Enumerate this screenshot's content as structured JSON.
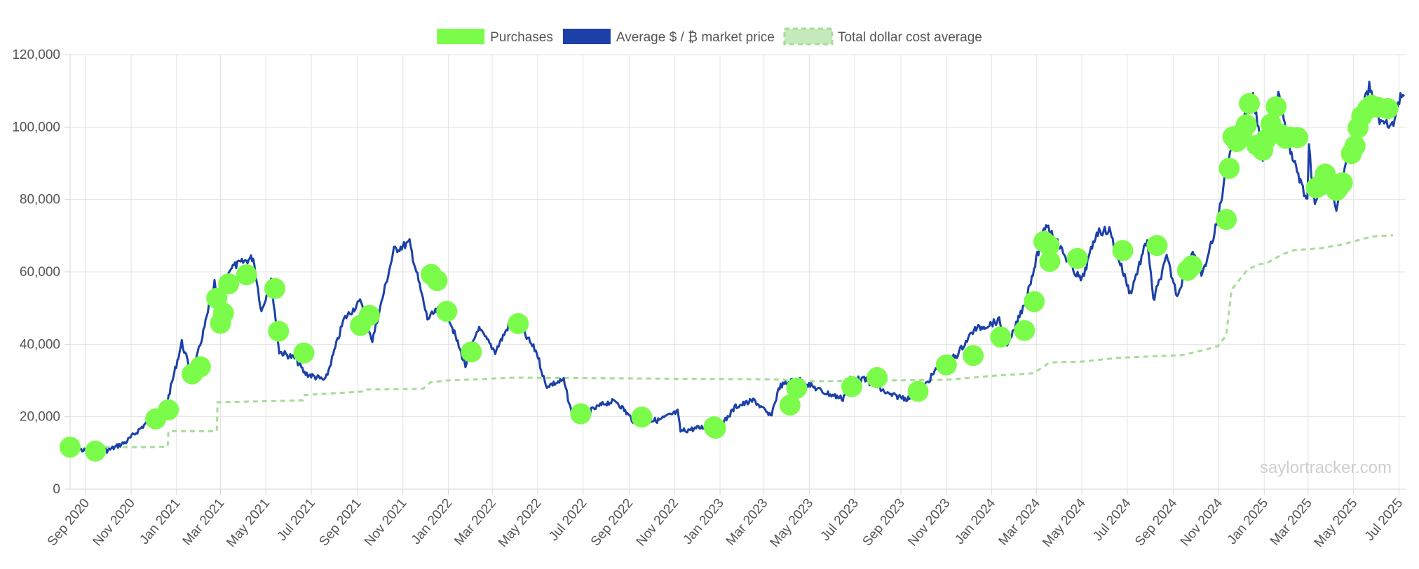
{
  "chart_data": {
    "type": "line",
    "legend": {
      "placement": "top-center",
      "items": [
        {
          "label": "Purchases",
          "color": "#7CFC4A",
          "style": "solid"
        },
        {
          "label": "Average $ / ₿ market price",
          "color": "#1C40A8",
          "style": "solid"
        },
        {
          "label": "Total dollar cost average",
          "color": "#A6DC98",
          "style": "dashed"
        }
      ]
    },
    "grid": true,
    "ylim": [
      0,
      120000
    ],
    "yticks": [
      {
        "value": 0,
        "label": "0"
      },
      {
        "value": 20000,
        "label": "20,000"
      },
      {
        "value": 40000,
        "label": "40,000"
      },
      {
        "value": 60000,
        "label": "60,000"
      },
      {
        "value": 80000,
        "label": "80,000"
      },
      {
        "value": 100000,
        "label": "100,000"
      },
      {
        "value": 120000,
        "label": "120,000"
      }
    ],
    "xlim": [
      "2020-08-11",
      "2025-07-10"
    ],
    "xticks": [
      {
        "date": "2020-09-01",
        "label": "Sep 2020"
      },
      {
        "date": "2020-11-01",
        "label": "Nov 2020"
      },
      {
        "date": "2021-01-01",
        "label": "Jan 2021"
      },
      {
        "date": "2021-03-01",
        "label": "Mar 2021"
      },
      {
        "date": "2021-05-01",
        "label": "May 2021"
      },
      {
        "date": "2021-07-01",
        "label": "Jul 2021"
      },
      {
        "date": "2021-09-01",
        "label": "Sep 2021"
      },
      {
        "date": "2021-11-01",
        "label": "Nov 2021"
      },
      {
        "date": "2022-01-01",
        "label": "Jan 2022"
      },
      {
        "date": "2022-03-01",
        "label": "Mar 2022"
      },
      {
        "date": "2022-05-01",
        "label": "May 2022"
      },
      {
        "date": "2022-07-01",
        "label": "Jul 2022"
      },
      {
        "date": "2022-09-01",
        "label": "Sep 2022"
      },
      {
        "date": "2022-11-01",
        "label": "Nov 2022"
      },
      {
        "date": "2023-01-01",
        "label": "Jan 2023"
      },
      {
        "date": "2023-03-01",
        "label": "Mar 2023"
      },
      {
        "date": "2023-05-01",
        "label": "May 2023"
      },
      {
        "date": "2023-07-01",
        "label": "Jul 2023"
      },
      {
        "date": "2023-09-01",
        "label": "Sep 2023"
      },
      {
        "date": "2023-11-01",
        "label": "Nov 2023"
      },
      {
        "date": "2024-01-01",
        "label": "Jan 2024"
      },
      {
        "date": "2024-03-01",
        "label": "Mar 2024"
      },
      {
        "date": "2024-05-01",
        "label": "May 2024"
      },
      {
        "date": "2024-07-01",
        "label": "Jul 2024"
      },
      {
        "date": "2024-09-01",
        "label": "Sep 2024"
      },
      {
        "date": "2024-11-01",
        "label": "Nov 2024"
      },
      {
        "date": "2025-01-01",
        "label": "Jan 2025"
      },
      {
        "date": "2025-03-01",
        "label": "Mar 2025"
      },
      {
        "date": "2025-05-01",
        "label": "May 2025"
      },
      {
        "date": "2025-07-01",
        "label": "Jul 2025"
      }
    ],
    "series": [
      {
        "name": "Average $ / ₿ market price",
        "color": "#1C40A8",
        "points": [
          [
            "2020-08-11",
            11500
          ],
          [
            "2020-09-05",
            10400
          ],
          [
            "2020-10-01",
            10700
          ],
          [
            "2020-10-25",
            13000
          ],
          [
            "2020-11-20",
            18000
          ],
          [
            "2020-12-17",
            22000
          ],
          [
            "2021-01-08",
            40500
          ],
          [
            "2021-01-22",
            31000
          ],
          [
            "2021-02-09",
            46000
          ],
          [
            "2021-02-21",
            57000
          ],
          [
            "2021-02-28",
            45000
          ],
          [
            "2021-03-13",
            61000
          ],
          [
            "2021-04-14",
            64000
          ],
          [
            "2021-04-25",
            49000
          ],
          [
            "2021-05-08",
            58000
          ],
          [
            "2021-05-19",
            38000
          ],
          [
            "2021-06-10",
            36000
          ],
          [
            "2021-06-22",
            32000
          ],
          [
            "2021-07-20",
            30000
          ],
          [
            "2021-08-14",
            47000
          ],
          [
            "2021-09-06",
            52000
          ],
          [
            "2021-09-21",
            41000
          ],
          [
            "2021-10-20",
            66000
          ],
          [
            "2021-11-10",
            68000
          ],
          [
            "2021-12-04",
            47000
          ],
          [
            "2021-12-27",
            51000
          ],
          [
            "2022-01-24",
            34000
          ],
          [
            "2022-02-10",
            44500
          ],
          [
            "2022-03-05",
            38000
          ],
          [
            "2022-03-29",
            47500
          ],
          [
            "2022-04-30",
            37700
          ],
          [
            "2022-05-12",
            28500
          ],
          [
            "2022-06-05",
            30000
          ],
          [
            "2022-06-18",
            19000
          ],
          [
            "2022-07-30",
            23700
          ],
          [
            "2022-08-15",
            24300
          ],
          [
            "2022-09-06",
            19000
          ],
          [
            "2022-10-10",
            19000
          ],
          [
            "2022-11-05",
            21300
          ],
          [
            "2022-11-09",
            16000
          ],
          [
            "2022-12-15",
            17300
          ],
          [
            "2022-12-30",
            16500
          ],
          [
            "2023-01-22",
            22800
          ],
          [
            "2023-02-16",
            24500
          ],
          [
            "2023-03-10",
            20000
          ],
          [
            "2023-03-22",
            28300
          ],
          [
            "2023-04-14",
            30500
          ],
          [
            "2023-05-20",
            26800
          ],
          [
            "2023-06-15",
            25000
          ],
          [
            "2023-06-25",
            30500
          ],
          [
            "2023-07-15",
            30200
          ],
          [
            "2023-08-17",
            26000
          ],
          [
            "2023-09-11",
            25000
          ],
          [
            "2023-10-01",
            28000
          ],
          [
            "2023-10-24",
            34500
          ],
          [
            "2023-11-15",
            37000
          ],
          [
            "2023-12-08",
            44000
          ],
          [
            "2024-01-11",
            46500
          ],
          [
            "2024-01-23",
            39500
          ],
          [
            "2024-02-15",
            52000
          ],
          [
            "2024-03-14",
            73500
          ],
          [
            "2024-04-18",
            61000
          ],
          [
            "2024-05-01",
            57500
          ],
          [
            "2024-05-21",
            71000
          ],
          [
            "2024-06-07",
            71500
          ],
          [
            "2024-07-05",
            54000
          ],
          [
            "2024-07-28",
            69000
          ],
          [
            "2024-08-05",
            52000
          ],
          [
            "2024-08-23",
            64000
          ],
          [
            "2024-09-06",
            53500
          ],
          [
            "2024-09-27",
            66000
          ],
          [
            "2024-10-10",
            59000
          ],
          [
            "2024-10-29",
            73000
          ],
          [
            "2024-11-13",
            90000
          ],
          [
            "2024-11-22",
            99000
          ],
          [
            "2024-12-05",
            103500
          ],
          [
            "2024-12-17",
            108000
          ],
          [
            "2024-12-30",
            92000
          ],
          [
            "2025-01-20",
            109000
          ],
          [
            "2025-02-02",
            95500
          ],
          [
            "2025-02-28",
            79000
          ],
          [
            "2025-03-02",
            94000
          ],
          [
            "2025-03-10",
            78000
          ],
          [
            "2025-03-25",
            88000
          ],
          [
            "2025-04-08",
            76000
          ],
          [
            "2025-04-22",
            93000
          ],
          [
            "2025-05-01",
            97000
          ],
          [
            "2025-05-22",
            111000
          ],
          [
            "2025-06-05",
            101500
          ],
          [
            "2025-06-22",
            100000
          ],
          [
            "2025-07-03",
            109000
          ],
          [
            "2025-07-08",
            108500
          ]
        ]
      },
      {
        "name": "Total dollar cost average",
        "color": "#A6DC98",
        "style": "dashed",
        "points": [
          [
            "2020-09-14",
            11600
          ],
          [
            "2020-11-10",
            11600
          ],
          [
            "2020-12-20",
            11700
          ],
          [
            "2020-12-21",
            16000
          ],
          [
            "2021-02-24",
            16000
          ],
          [
            "2021-02-25",
            24000
          ],
          [
            "2021-06-20",
            24500
          ],
          [
            "2021-06-22",
            26000
          ],
          [
            "2021-09-12",
            27000
          ],
          [
            "2021-09-14",
            27500
          ],
          [
            "2021-11-28",
            27700
          ],
          [
            "2021-12-08",
            29500
          ],
          [
            "2021-12-30",
            30000
          ],
          [
            "2022-03-31",
            30800
          ],
          [
            "2023-03-27",
            30300
          ],
          [
            "2023-04-05",
            29700
          ],
          [
            "2023-11-02",
            30200
          ],
          [
            "2023-12-27",
            31200
          ],
          [
            "2024-02-26",
            32000
          ],
          [
            "2024-03-19",
            35000
          ],
          [
            "2024-05-01",
            35200
          ],
          [
            "2024-06-20",
            36300
          ],
          [
            "2024-09-13",
            37000
          ],
          [
            "2024-10-13",
            38500
          ],
          [
            "2024-10-31",
            39500
          ],
          [
            "2024-11-11",
            42500
          ],
          [
            "2024-11-18",
            55000
          ],
          [
            "2024-12-09",
            60500
          ],
          [
            "2024-12-23",
            62000
          ],
          [
            "2025-01-05",
            62500
          ],
          [
            "2025-01-27",
            65000
          ],
          [
            "2025-02-10",
            66000
          ],
          [
            "2025-03-17",
            66500
          ],
          [
            "2025-04-14",
            67500
          ],
          [
            "2025-05-26",
            69800
          ],
          [
            "2025-06-23",
            70100
          ]
        ]
      },
      {
        "name": "Purchases",
        "color": "#7CFC4A",
        "points": [
          [
            "2020-08-11",
            11600
          ],
          [
            "2020-09-14",
            10500
          ],
          [
            "2020-12-04",
            19400
          ],
          [
            "2020-12-21",
            21900
          ],
          [
            "2021-01-22",
            31800
          ],
          [
            "2021-02-02",
            33800
          ],
          [
            "2021-02-24",
            52700
          ],
          [
            "2021-03-01",
            45800
          ],
          [
            "2021-03-05",
            48600
          ],
          [
            "2021-03-12",
            56700
          ],
          [
            "2021-04-05",
            59200
          ],
          [
            "2021-05-13",
            55400
          ],
          [
            "2021-05-18",
            43600
          ],
          [
            "2021-06-21",
            37600
          ],
          [
            "2021-09-05",
            45200
          ],
          [
            "2021-09-17",
            48000
          ],
          [
            "2021-12-09",
            59300
          ],
          [
            "2021-12-17",
            57600
          ],
          [
            "2021-12-30",
            49100
          ],
          [
            "2022-02-01",
            37900
          ],
          [
            "2022-04-05",
            45700
          ],
          [
            "2022-06-28",
            20800
          ],
          [
            "2022-09-18",
            19900
          ],
          [
            "2022-12-24",
            17200
          ],
          [
            "2022-12-26",
            16800
          ],
          [
            "2023-04-05",
            23200
          ],
          [
            "2023-04-14",
            27900
          ],
          [
            "2023-06-27",
            28300
          ],
          [
            "2023-07-31",
            30800
          ],
          [
            "2023-09-24",
            27000
          ],
          [
            "2023-11-01",
            34300
          ],
          [
            "2023-12-07",
            36900
          ],
          [
            "2024-01-13",
            42000
          ],
          [
            "2024-02-14",
            43800
          ],
          [
            "2024-02-27",
            51800
          ],
          [
            "2024-03-11",
            68400
          ],
          [
            "2024-03-18",
            67300
          ],
          [
            "2024-03-19",
            62900
          ],
          [
            "2024-04-25",
            63700
          ],
          [
            "2024-06-25",
            65900
          ],
          [
            "2024-08-10",
            67300
          ],
          [
            "2024-09-20",
            60400
          ],
          [
            "2024-09-26",
            61700
          ],
          [
            "2024-11-11",
            74500
          ],
          [
            "2024-11-15",
            88600
          ],
          [
            "2024-11-20",
            97300
          ],
          [
            "2024-11-25",
            96000
          ],
          [
            "2024-12-02",
            98300
          ],
          [
            "2024-12-08",
            100600
          ],
          [
            "2024-12-12",
            106500
          ],
          [
            "2024-12-22",
            95000
          ],
          [
            "2024-12-30",
            93600
          ],
          [
            "2025-01-03",
            96500
          ],
          [
            "2025-01-10",
            100800
          ],
          [
            "2025-01-17",
            105600
          ],
          [
            "2025-01-23",
            98000
          ],
          [
            "2025-01-30",
            96900
          ],
          [
            "2025-02-05",
            97200
          ],
          [
            "2025-02-15",
            97100
          ],
          [
            "2025-03-12",
            83200
          ],
          [
            "2025-03-18",
            84000
          ],
          [
            "2025-03-24",
            87000
          ],
          [
            "2025-04-08",
            82500
          ],
          [
            "2025-04-12",
            83600
          ],
          [
            "2025-04-16",
            84600
          ],
          [
            "2025-04-28",
            92700
          ],
          [
            "2025-05-03",
            94800
          ],
          [
            "2025-05-07",
            99800
          ],
          [
            "2025-05-12",
            103000
          ],
          [
            "2025-05-20",
            105000
          ],
          [
            "2025-05-25",
            106000
          ],
          [
            "2025-06-02",
            105500
          ],
          [
            "2025-06-16",
            105100
          ]
        ]
      }
    ],
    "watermark": "saylortracker.com"
  }
}
